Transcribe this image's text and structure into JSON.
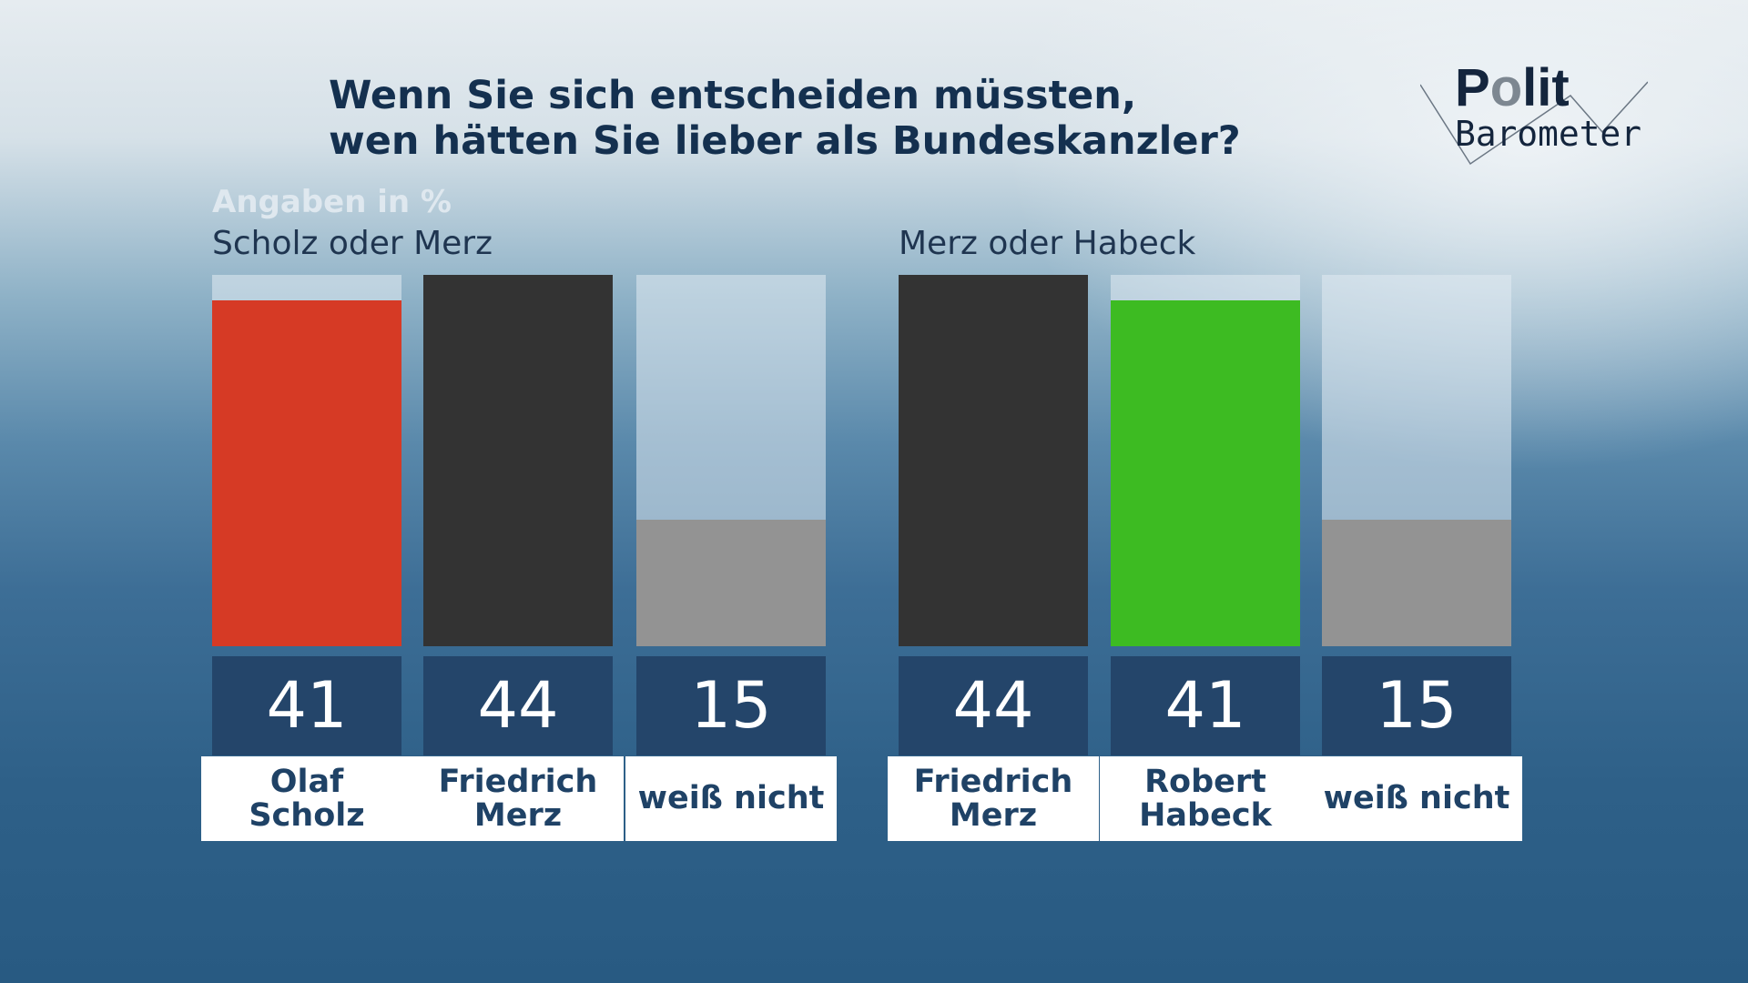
{
  "title_line1": "Wenn Sie sich entscheiden müssten,",
  "title_line2": "wen hätten Sie lieber als Bundeskanzler?",
  "unit_label": "Angaben in %",
  "logo": {
    "text1": "Polit",
    "text2": "Barometer"
  },
  "chart_data": [
    {
      "type": "bar",
      "title": "Scholz oder Merz",
      "categories": [
        "Olaf\nScholz",
        "Friedrich\nMerz",
        "weiß nicht"
      ],
      "values": [
        41,
        44,
        15
      ],
      "colors": [
        "#d63a25",
        "#333333",
        "#939393"
      ],
      "ylim": [
        0,
        44
      ]
    },
    {
      "type": "bar",
      "title": "Merz oder Habeck",
      "categories": [
        "Friedrich\nMerz",
        "Robert\nHabeck",
        "weiß nicht"
      ],
      "values": [
        44,
        41,
        15
      ],
      "colors": [
        "#333333",
        "#3dbb22",
        "#939393"
      ],
      "ylim": [
        0,
        44
      ]
    }
  ]
}
